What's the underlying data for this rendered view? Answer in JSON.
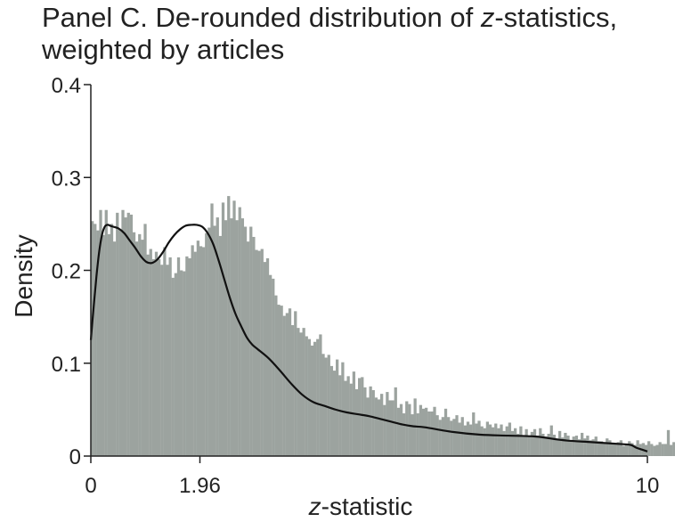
{
  "chart_data": {
    "type": "bar",
    "title": {
      "prefix": "Panel C. De-rounded distribution of ",
      "italic": "z",
      "suffix": "-statistics,",
      "line2": "weighted by articles"
    },
    "xlabel": {
      "italic": "z",
      "rest": "-statistic"
    },
    "ylabel": "Density",
    "xlim": [
      0,
      10
    ],
    "ylim": [
      0,
      0.4
    ],
    "x_ticks": [
      {
        "value": 0,
        "label": "0"
      },
      {
        "value": 1.96,
        "label": "1.96"
      },
      {
        "value": 10,
        "label": "10"
      }
    ],
    "y_ticks": [
      {
        "value": 0,
        "label": "0"
      },
      {
        "value": 0.1,
        "label": "0.1"
      },
      {
        "value": 0.2,
        "label": "0.2"
      },
      {
        "value": 0.3,
        "label": "0.3"
      },
      {
        "value": 0.4,
        "label": "0.4"
      }
    ],
    "grid": false,
    "series": [
      {
        "type": "histogram",
        "bin_width": 0.05,
        "color": "#9ca39f",
        "values": [
          0.253,
          0.25,
          0.243,
          0.265,
          0.238,
          0.265,
          0.239,
          0.25,
          0.231,
          0.262,
          0.244,
          0.265,
          0.257,
          0.262,
          0.26,
          0.241,
          0.231,
          0.239,
          0.233,
          0.25,
          0.217,
          0.223,
          0.212,
          0.22,
          0.212,
          0.206,
          0.225,
          0.206,
          0.214,
          0.192,
          0.197,
          0.214,
          0.2,
          0.199,
          0.215,
          0.213,
          0.227,
          0.22,
          0.232,
          0.226,
          0.225,
          0.24,
          0.246,
          0.272,
          0.248,
          0.257,
          0.237,
          0.273,
          0.254,
          0.28,
          0.256,
          0.275,
          0.254,
          0.268,
          0.256,
          0.247,
          0.231,
          0.247,
          0.236,
          0.222,
          0.221,
          0.223,
          0.209,
          0.213,
          0.195,
          0.191,
          0.173,
          0.163,
          0.162,
          0.151,
          0.154,
          0.159,
          0.141,
          0.156,
          0.138,
          0.133,
          0.138,
          0.129,
          0.126,
          0.119,
          0.123,
          0.126,
          0.131,
          0.11,
          0.106,
          0.109,
          0.097,
          0.092,
          0.104,
          0.087,
          0.101,
          0.081,
          0.086,
          0.078,
          0.091,
          0.072,
          0.084,
          0.085,
          0.074,
          0.063,
          0.075,
          0.071,
          0.063,
          0.061,
          0.067,
          0.055,
          0.069,
          0.06,
          0.06,
          0.074,
          0.052,
          0.056,
          0.046,
          0.059,
          0.056,
          0.045,
          0.062,
          0.046,
          0.055,
          0.051,
          0.052,
          0.048,
          0.048,
          0.053,
          0.044,
          0.039,
          0.042,
          0.051,
          0.042,
          0.038,
          0.04,
          0.044,
          0.036,
          0.042,
          0.033,
          0.037,
          0.034,
          0.047,
          0.035,
          0.038,
          0.032,
          0.03,
          0.037,
          0.034,
          0.031,
          0.035,
          0.03,
          0.034,
          0.027,
          0.032,
          0.036,
          0.027,
          0.03,
          0.024,
          0.032,
          0.022,
          0.029,
          0.021,
          0.026,
          0.029,
          0.022,
          0.03,
          0.024,
          0.021,
          0.024,
          0.033,
          0.023,
          0.019,
          0.027,
          0.02,
          0.025,
          0.022,
          0.017,
          0.021,
          0.022,
          0.018,
          0.025,
          0.019,
          0.022,
          0.017,
          0.018,
          0.021,
          0.016,
          0.016,
          0.014,
          0.019,
          0.017,
          0.014,
          0.013,
          0.015,
          0.017,
          0.011,
          0.012,
          0.016,
          0.014,
          0.012,
          0.017,
          0.013,
          0.014,
          0.012,
          0.016,
          0.013,
          0.011,
          0.012,
          0.015,
          0.013,
          0.013,
          0.028,
          0.012,
          0.015,
          0.01,
          0.01,
          0.007,
          0.007
        ]
      },
      {
        "type": "line",
        "color": "#111111",
        "x": [
          0.0,
          0.05,
          0.1,
          0.15,
          0.2,
          0.25,
          0.3,
          0.35,
          0.4,
          0.5,
          0.6,
          0.7,
          0.8,
          0.9,
          1.0,
          1.1,
          1.2,
          1.3,
          1.4,
          1.5,
          1.6,
          1.7,
          1.8,
          1.9,
          2.0,
          2.1,
          2.2,
          2.3,
          2.4,
          2.5,
          2.6,
          2.7,
          2.8,
          2.9,
          3.0,
          3.2,
          3.4,
          3.6,
          3.8,
          4.0,
          4.2,
          4.4,
          4.6,
          4.8,
          5.0,
          5.2,
          5.4,
          5.6,
          5.8,
          6.0,
          6.5,
          7.0,
          7.5,
          8.0,
          8.5,
          9.0,
          9.5,
          9.7,
          9.8,
          9.9,
          10.0
        ],
        "y": [
          0.125,
          0.16,
          0.193,
          0.22,
          0.238,
          0.247,
          0.249,
          0.248,
          0.247,
          0.245,
          0.24,
          0.232,
          0.224,
          0.215,
          0.209,
          0.208,
          0.212,
          0.22,
          0.23,
          0.238,
          0.244,
          0.248,
          0.249,
          0.249,
          0.247,
          0.24,
          0.228,
          0.21,
          0.19,
          0.17,
          0.153,
          0.14,
          0.128,
          0.12,
          0.115,
          0.105,
          0.092,
          0.078,
          0.066,
          0.058,
          0.054,
          0.05,
          0.047,
          0.045,
          0.043,
          0.04,
          0.037,
          0.034,
          0.032,
          0.031,
          0.026,
          0.023,
          0.022,
          0.021,
          0.017,
          0.015,
          0.013,
          0.012,
          0.009,
          0.007,
          0.005
        ]
      }
    ]
  }
}
